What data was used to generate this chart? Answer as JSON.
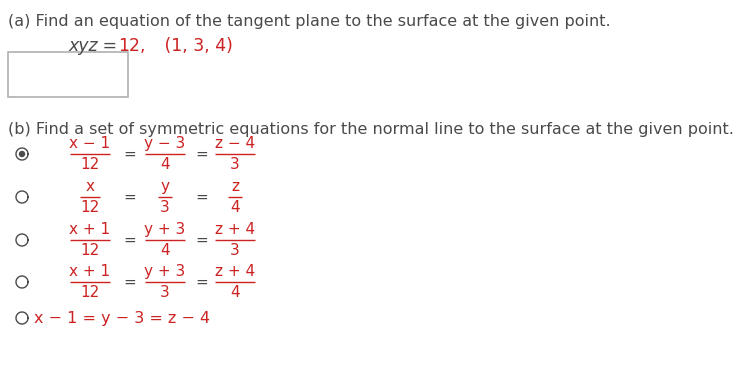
{
  "bg_color": "#ffffff",
  "text_color_dark": "#4a4a4a",
  "text_color_red": "#cc2222",
  "part_a_label": "(a) Find an equation of the tangent plane to the surface at the given point.",
  "part_b_label": "(b) Find a set of symmetric equations for the normal line to the surface at the given point.",
  "options": [
    {
      "selected": true,
      "numerators": [
        "x − 1",
        "y − 3",
        "z − 4"
      ],
      "denominators": [
        "12",
        "4",
        "3"
      ]
    },
    {
      "selected": false,
      "numerators": [
        "x",
        "y",
        "z"
      ],
      "denominators": [
        "12",
        "3",
        "4"
      ]
    },
    {
      "selected": false,
      "numerators": [
        "x + 1",
        "y + 3",
        "z + 4"
      ],
      "denominators": [
        "12",
        "4",
        "3"
      ]
    },
    {
      "selected": false,
      "numerators": [
        "x + 1",
        "y + 3",
        "z + 4"
      ],
      "denominators": [
        "12",
        "3",
        "4"
      ]
    }
  ],
  "option5_text": "x − 1 = y − 3 = z − 4"
}
